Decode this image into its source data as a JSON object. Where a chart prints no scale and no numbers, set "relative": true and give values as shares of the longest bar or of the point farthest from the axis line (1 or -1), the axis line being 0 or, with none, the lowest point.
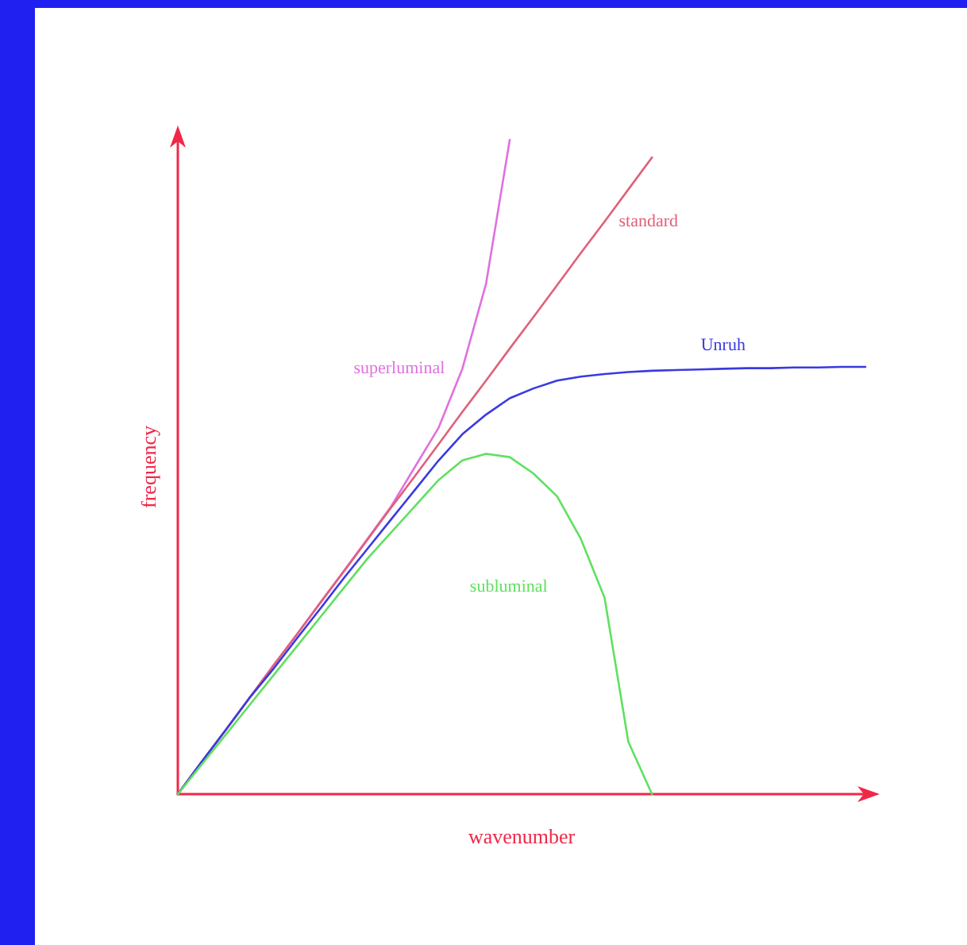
{
  "chart_data": {
    "type": "line",
    "relative": true,
    "xlabel": "wavenumber",
    "ylabel": "frequency",
    "grid": false,
    "legend": false,
    "marker": "none",
    "line_style": "solid",
    "categories": [
      null,
      null,
      null,
      null,
      null,
      null,
      null,
      null,
      null,
      null,
      null,
      null,
      null,
      null,
      null,
      null,
      null,
      null,
      null,
      null,
      null,
      null,
      null,
      null,
      null,
      null,
      null,
      null,
      null,
      null
    ],
    "series": [
      {
        "name": "superluminal",
        "color": "#e070e0",
        "values": [
          0,
          0.049,
          0.097,
          0.146,
          0.195,
          0.243,
          0.292,
          0.341,
          0.39,
          0.44,
          0.5,
          0.56,
          0.65,
          0.78,
          1,
          null,
          null,
          null,
          null,
          null,
          null,
          null,
          null,
          null,
          null,
          null,
          null,
          null,
          null,
          null
        ]
      },
      {
        "name": "standard",
        "color": "#e0607a",
        "values": [
          0,
          0.049,
          0.097,
          0.146,
          0.195,
          0.243,
          0.292,
          0.34,
          0.389,
          0.438,
          0.486,
          0.535,
          0.584,
          0.632,
          0.681,
          0.729,
          0.778,
          0.827,
          0.875,
          0.924,
          0.973,
          null,
          null,
          null,
          null,
          null,
          null,
          null,
          null,
          null
        ]
      },
      {
        "name": "Unruh",
        "color": "#3a3ae0",
        "values": [
          0,
          0.049,
          0.097,
          0.146,
          0.19,
          0.237,
          0.283,
          0.33,
          0.375,
          0.42,
          0.465,
          0.51,
          0.55,
          0.58,
          0.605,
          0.62,
          0.632,
          0.638,
          0.642,
          0.645,
          0.647,
          0.648,
          0.649,
          0.65,
          0.651,
          0.651,
          0.652,
          0.652,
          0.653,
          0.653
        ]
      },
      {
        "name": "subluminal",
        "color": "#60e060",
        "values": [
          0,
          0.045,
          0.09,
          0.135,
          0.18,
          0.225,
          0.27,
          0.315,
          0.36,
          0.4,
          0.44,
          0.48,
          0.51,
          0.52,
          0.515,
          0.49,
          0.455,
          0.39,
          0.3,
          0.08,
          0,
          null,
          null,
          null,
          null,
          null,
          null,
          null,
          null,
          null
        ]
      }
    ]
  }
}
